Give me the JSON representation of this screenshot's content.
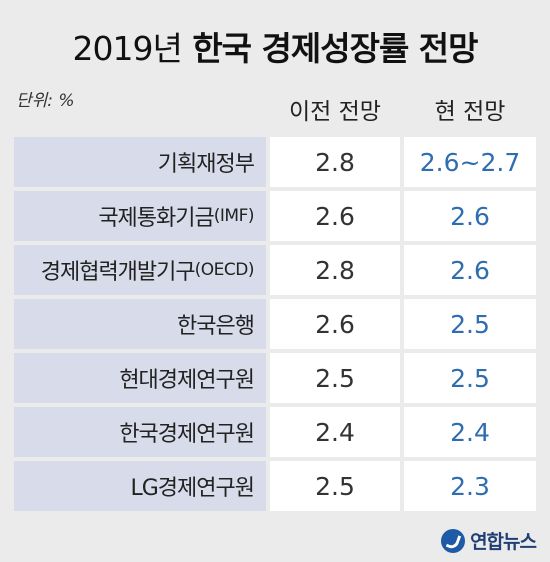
{
  "title": {
    "year": "2019년",
    "main": "한국 경제성장률 전망"
  },
  "unit": "단위: %",
  "headers": {
    "prev": "이전 전망",
    "cur": "현 전망"
  },
  "chart_data": {
    "type": "table",
    "title": "2019년 한국 경제성장률 전망",
    "unit": "단위: %",
    "columns": [
      "이전 전망",
      "현 전망"
    ],
    "rows": [
      {
        "name": "기획재정부",
        "sub": "",
        "prev": "2.8",
        "cur": "2.6~2.7"
      },
      {
        "name": "국제통화기금",
        "sub": "(IMF)",
        "prev": "2.6",
        "cur": "2.6"
      },
      {
        "name": "경제협력개발기구",
        "sub": "(OECD)",
        "prev": "2.8",
        "cur": "2.6"
      },
      {
        "name": "한국은행",
        "sub": "",
        "prev": "2.6",
        "cur": "2.5"
      },
      {
        "name": "현대경제연구원",
        "sub": "",
        "prev": "2.5",
        "cur": "2.5"
      },
      {
        "name": "한국경제연구원",
        "sub": "",
        "prev": "2.4",
        "cur": "2.4"
      },
      {
        "name": "LG경제연구원",
        "sub": "",
        "prev": "2.5",
        "cur": "2.3"
      }
    ]
  },
  "logo": "연합뉴스",
  "colors": {
    "name_bg": "#d8dcea",
    "current_value": "#2e6db0",
    "background": "#ebebeb"
  }
}
